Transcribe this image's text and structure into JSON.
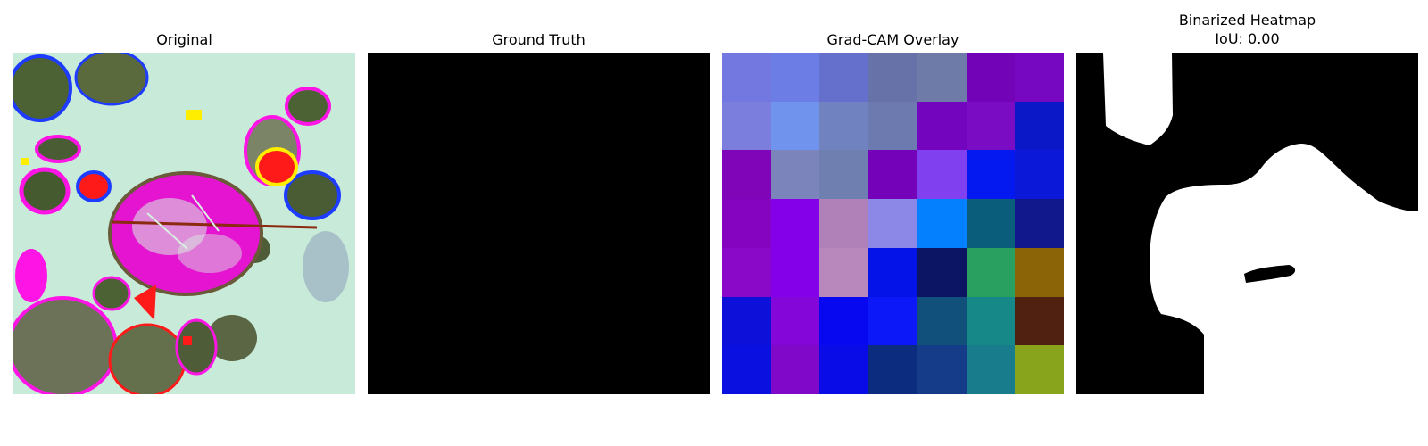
{
  "panels": [
    {
      "title": "Original"
    },
    {
      "title": "Ground Truth"
    },
    {
      "title": "Grad-CAM Overlay"
    },
    {
      "title": "Binarized Heatmap",
      "subtitle": "IoU: 0.00"
    }
  ],
  "gradcam_grid": [
    [
      "#7378e0",
      "#6c7de6",
      "#6570cc",
      "#6772a8",
      "#6e7aa8",
      "#7203b6",
      "#7508c0"
    ],
    [
      "#7b7edc",
      "#7094ed",
      "#7082c0",
      "#6c7ab0",
      "#7405be",
      "#7a0cc4",
      "#0a18c8"
    ],
    [
      "#8004b8",
      "#7c84bc",
      "#6f80b0",
      "#7402b8",
      "#8040f0",
      "#0418f0",
      "#0c18d8"
    ],
    [
      "#8404c0",
      "#8400e8",
      "#b080b8",
      "#8c88e8",
      "#0480ff",
      "#0a5e7c",
      "#10188c"
    ],
    [
      "#8a08c8",
      "#8400e8",
      "#b888bc",
      "#0414e8",
      "#0c1464",
      "#2aa060",
      "#8c6408"
    ],
    [
      "#0c10d8",
      "#8406d8",
      "#0808f0",
      "#0c18f8",
      "#12507c",
      "#168888",
      "#502010"
    ],
    [
      "#0a10e0",
      "#8008c8",
      "#0a0ce8",
      "#0c2c80",
      "#143c88",
      "#187c8c",
      "#88a41c"
    ]
  ],
  "colors": {
    "background": "#ffffff",
    "mask_background": "#000000",
    "mask_foreground": "#ffffff",
    "title_text": "#000000"
  }
}
